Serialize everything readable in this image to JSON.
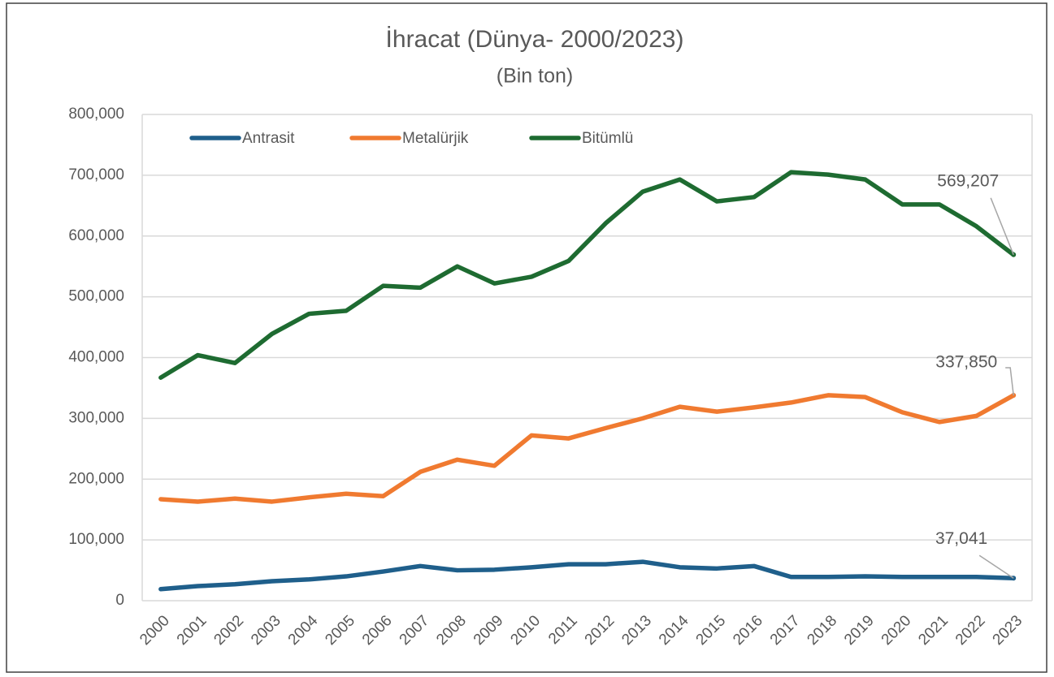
{
  "chart_data": {
    "type": "line",
    "title": "İhracat (Dünya- 2000/2023)",
    "subtitle": "(Bin ton)",
    "categories": [
      "2000",
      "2001",
      "2002",
      "2003",
      "2004",
      "2005",
      "2006",
      "2007",
      "2008",
      "2009",
      "2010",
      "2011",
      "2012",
      "2013",
      "2014",
      "2015",
      "2016",
      "2017",
      "2018",
      "2019",
      "2020",
      "2021",
      "2022",
      "2023"
    ],
    "series": [
      {
        "name": "Antrasit",
        "color": "#1f5f8b",
        "values": [
          19000,
          24000,
          27000,
          32000,
          35000,
          40000,
          48000,
          57000,
          50000,
          51000,
          55000,
          60000,
          60000,
          64000,
          55000,
          53000,
          57000,
          39000,
          39000,
          40000,
          39000,
          39000,
          39000,
          37041
        ],
        "value_labels": [
          null,
          null,
          null,
          null,
          null,
          null,
          null,
          null,
          null,
          null,
          null,
          null,
          null,
          null,
          null,
          null,
          null,
          null,
          null,
          null,
          null,
          null,
          null,
          "37,041"
        ]
      },
      {
        "name": "Metalürjik",
        "color": "#f07a30",
        "values": [
          167000,
          163000,
          168000,
          163000,
          170000,
          176000,
          172000,
          212000,
          232000,
          222000,
          272000,
          267000,
          284000,
          300000,
          319000,
          311000,
          318000,
          326000,
          338000,
          335000,
          310000,
          294000,
          304000,
          337850
        ],
        "value_labels": [
          null,
          null,
          null,
          null,
          null,
          null,
          null,
          null,
          null,
          null,
          null,
          null,
          null,
          null,
          null,
          null,
          null,
          null,
          null,
          null,
          null,
          null,
          null,
          "337,850"
        ]
      },
      {
        "name": "Bitümlü",
        "color": "#1e6b31",
        "values": [
          367000,
          404000,
          391000,
          439000,
          472000,
          477000,
          518000,
          515000,
          550000,
          522000,
          533000,
          559000,
          621000,
          673000,
          693000,
          657000,
          664000,
          705000,
          701000,
          693000,
          652000,
          652000,
          616000,
          569207
        ],
        "value_labels": [
          null,
          null,
          null,
          null,
          null,
          null,
          null,
          null,
          null,
          null,
          null,
          null,
          null,
          null,
          null,
          null,
          null,
          null,
          null,
          null,
          null,
          null,
          null,
          "569,207"
        ]
      }
    ],
    "ylim": [
      0,
      800000
    ],
    "yticks": [
      0,
      {
        "value": 100000,
        "label": "100,000"
      },
      {
        "value": 200000,
        "label": "200,000"
      },
      {
        "value": 300000,
        "label": "300,000"
      },
      {
        "value": 400000,
        "label": "400,000"
      },
      {
        "value": 500000,
        "label": "500,000"
      },
      {
        "value": 600000,
        "label": "600,000"
      },
      {
        "value": 700000,
        "label": "700,000"
      },
      {
        "value": 800000,
        "label": "800,000"
      }
    ],
    "grid": true,
    "legend": "top-left"
  }
}
